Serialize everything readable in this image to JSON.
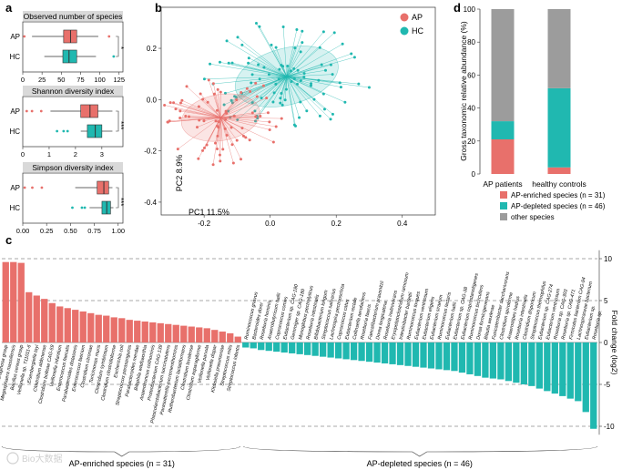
{
  "colors": {
    "ap": "#E8706B",
    "hc": "#20B8B0",
    "other": "#9C9C9C"
  },
  "panels": {
    "a": "a",
    "b": "b",
    "c": "c",
    "d": "d"
  },
  "chart_data": [
    {
      "id": "a1",
      "type": "boxplot",
      "title": "Observed number of species",
      "categories": [
        "AP",
        "HC"
      ],
      "xticks": [
        0,
        25,
        50,
        75,
        100,
        125
      ],
      "xlim": [
        0,
        130
      ],
      "boxes": [
        {
          "group": "AP",
          "min": 12,
          "q1": 53,
          "median": 62,
          "q3": 70,
          "max": 98,
          "outliers": [
            2,
            112
          ]
        },
        {
          "group": "HC",
          "min": 28,
          "q1": 52,
          "median": 60,
          "q3": 70,
          "max": 95,
          "outliers": [
            118
          ]
        }
      ],
      "significance": "*"
    },
    {
      "id": "a2",
      "type": "boxplot",
      "title": "Shannon diversity index",
      "categories": [
        "AP",
        "HC"
      ],
      "xticks": [
        0,
        1,
        2,
        3
      ],
      "xlim": [
        0,
        3.8
      ],
      "boxes": [
        {
          "group": "AP",
          "min": 1.05,
          "q1": 2.2,
          "median": 2.55,
          "q3": 2.85,
          "max": 3.4,
          "outliers": [
            0.15,
            0.35,
            0.7
          ]
        },
        {
          "group": "HC",
          "min": 2.2,
          "q1": 2.45,
          "median": 2.75,
          "q3": 3.0,
          "max": 3.4,
          "outliers": [
            1.3,
            1.55,
            1.7
          ]
        }
      ],
      "significance": "***"
    },
    {
      "id": "a3",
      "type": "boxplot",
      "title": "Simpson diversity index",
      "categories": [
        "AP",
        "HC"
      ],
      "xticks": [
        "0.00",
        "0.25",
        "0.50",
        "0.75",
        "1.00"
      ],
      "xlim": [
        0,
        1.05
      ],
      "boxes": [
        {
          "group": "AP",
          "min": 0.55,
          "q1": 0.78,
          "median": 0.85,
          "q3": 0.9,
          "max": 0.94,
          "outliers": [
            0.02,
            0.1,
            0.2
          ]
        },
        {
          "group": "HC",
          "min": 0.7,
          "q1": 0.83,
          "median": 0.88,
          "q3": 0.92,
          "max": 0.95,
          "outliers": [
            0.52,
            0.62,
            0.65
          ]
        }
      ],
      "significance": "***"
    },
    {
      "id": "b",
      "type": "scatter",
      "xlabel": "PC1 11.5%",
      "ylabel": "PC2 8.9%",
      "xlim": [
        -0.33,
        0.5
      ],
      "ylim": [
        -0.45,
        0.36
      ],
      "xticks": [
        "-0.2",
        "0.0",
        "0.2",
        "0.4"
      ],
      "yticks": [
        "0.2",
        "0.0",
        "-0.2",
        "-0.4"
      ],
      "legend": [
        "AP",
        "HC"
      ],
      "legend_position": "top-right",
      "series": [
        {
          "name": "AP",
          "centroid": [
            -0.15,
            -0.07
          ],
          "ellipse": {
            "rx": 0.12,
            "ry": 0.09,
            "angle": -10
          }
        },
        {
          "name": "HC",
          "centroid": [
            0.05,
            0.09
          ],
          "ellipse": {
            "rx": 0.16,
            "ry": 0.11,
            "angle": -15
          }
        }
      ]
    },
    {
      "id": "d",
      "type": "bar",
      "ylabel": "Gross taxonomic relative abundance (%)",
      "categories": [
        "AP patients",
        "healthy controls"
      ],
      "ylim": [
        0,
        100
      ],
      "yticks": [
        0,
        20,
        40,
        60,
        80,
        100
      ],
      "stacked": true,
      "series": [
        {
          "name": "AP-enriched species (n = 31)",
          "values": [
            21,
            4
          ]
        },
        {
          "name": "AP-depleted species (n = 46)",
          "values": [
            11,
            48
          ]
        },
        {
          "name": "other species",
          "values": [
            68,
            48
          ]
        }
      ],
      "legend_position": "bottom"
    },
    {
      "id": "c",
      "type": "bar",
      "ylabel": "Fold change (log2)",
      "ylim": [
        -11,
        11
      ],
      "yticks": [
        10,
        5,
        0,
        -5,
        -10
      ],
      "group_labels": [
        "AP-enriched species (n = 31)",
        "AP-depleted species (n = 46)"
      ],
      "enriched": {
        "labels": [
          "Pseudomonas aeruginosa group",
          "Megasphaera massiliensis",
          "Bacillus cereus group",
          "Veillonella sp. T11011-6",
          "Eisenbergiella tayi",
          "Clostridium aldenense",
          "Clostridium bolteae CAG-59",
          "Veillonella infantium",
          "Enterococcus faecalis",
          "Parabacteroides distasonis",
          "Enterococcus faecium",
          "Clostridium citroniae",
          "Turicimonas muris",
          "Clostridium symbiosum",
          "Clostridium clostridioforme",
          "Escherichia coli",
          "Streptococcus parasanguinis",
          "Parabacteroides merdae",
          "Bilophila wadsworthia",
          "Anaerotruncus colihominis",
          "Proteobacterium CAG-139",
          "Phascolarctobacterium succinatutens",
          "Parasutterella excrementihominis",
          "Ruthenibacterium lactatiformans",
          "Clostridium lavalense",
          "Clostridium asparagiforme",
          "Veillonella parvula",
          "Veillonella dispar",
          "Klebsiella pneumoniae",
          "Streptococcus mitis",
          "Streptococcus infantis"
        ],
        "values": [
          9.6,
          9.6,
          9.5,
          6.0,
          5.6,
          5.2,
          4.7,
          4.3,
          4.1,
          3.9,
          3.7,
          3.5,
          3.3,
          3.2,
          3.0,
          2.9,
          2.7,
          2.6,
          2.5,
          2.4,
          2.3,
          2.2,
          2.1,
          2.0,
          1.9,
          1.8,
          1.7,
          1.5,
          1.3,
          1.1,
          0.7
        ]
      },
      "depleted": {
        "labels": [
          "Ruminococcus gnavus",
          "Bacteroides dorei",
          "Roseburia hominis",
          "Anaerobutyricum hallii",
          "Coprococcus comes",
          "Eubacterium sp. CAG-180",
          "Gemmiger sp. CAG-180",
          "Monoglobus pectinilyticus",
          "Roseburia intestinalis",
          "Bifidobacterium longum",
          "Streptococcus salivarius",
          "Lachnospira pectinoschiza",
          "Coprococcus catus",
          "Eubacterium rectale",
          "Collinsella aerofaciens",
          "Roseburia faecis",
          "Faecalibacterium prausnitzii",
          "Dorea longicatena",
          "Roseburia inulinivorans",
          "Erysipelatoclostridium ramosum",
          "Intestinibacter bartlettii",
          "Ruminococcus torques",
          "Eubacterium ventriosum",
          "Eubacterium eligens",
          "Eubacterium siraeum",
          "Ruminococcus lactaris",
          "Eubacterium hallii",
          "Eubacterium sp. CAG-38",
          "Eubacterium coprostanoligenes",
          "Ruminococcus bicirculans",
          "Dorea formicigenerans",
          "Blautia wexlerae",
          "Fusicatenibacter saccharivorans",
          "Clostridium spiroforme",
          "Anaerostipes hadrus",
          "Roseburia intestinalis",
          "Clostridium disporicum",
          "Streptococcus thermophilus",
          "Eubacterium sp. CAG-274",
          "Eubacterium ventriosum",
          "Roseburia sp. CAG-303",
          "Roseburia sp. CAG-471",
          "Firmicutes bacterium CAG-94",
          "Lachnospiraceae bacterium",
          "Eubacterium sp.",
          "Roseburia sp."
        ],
        "values": [
          -0.6,
          -0.7,
          -0.9,
          -1.0,
          -1.1,
          -1.2,
          -1.3,
          -1.4,
          -1.5,
          -1.6,
          -1.7,
          -1.8,
          -1.9,
          -2.0,
          -2.1,
          -2.2,
          -2.3,
          -2.4,
          -2.5,
          -2.6,
          -2.7,
          -2.8,
          -2.9,
          -3.0,
          -3.1,
          -3.2,
          -3.3,
          -3.4,
          -3.6,
          -3.8,
          -4.0,
          -4.2,
          -4.3,
          -4.4,
          -4.6,
          -4.8,
          -5.0,
          -5.2,
          -5.5,
          -5.8,
          -6.1,
          -6.4,
          -6.7,
          -7.0,
          -8.3,
          -10.3
        ]
      }
    }
  ],
  "watermark": "Bio大数据"
}
